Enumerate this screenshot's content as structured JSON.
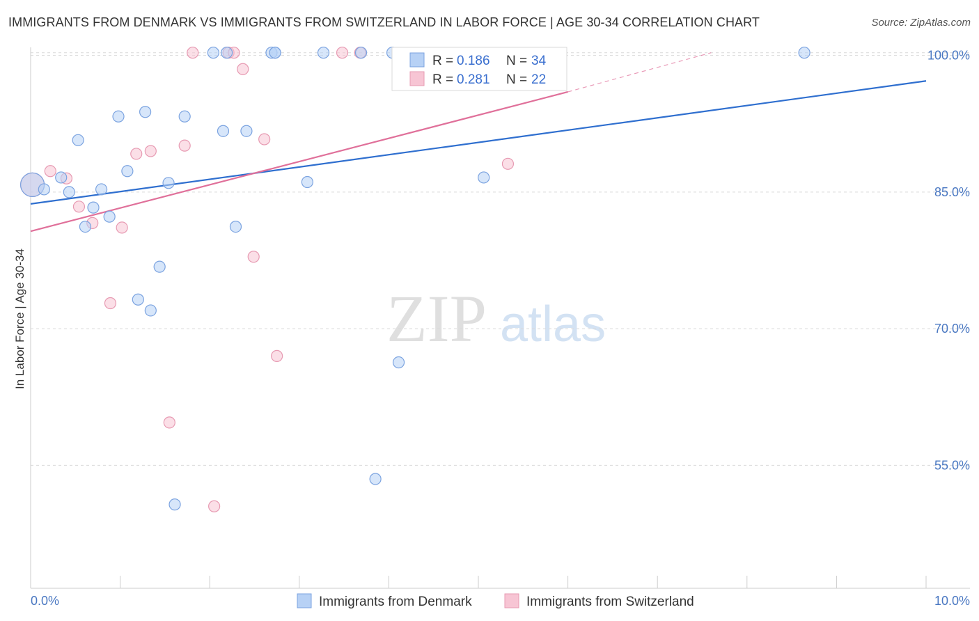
{
  "header": {
    "title": "IMMIGRANTS FROM DENMARK VS IMMIGRANTS FROM SWITZERLAND IN LABOR FORCE | AGE 30-34 CORRELATION CHART",
    "source": "Source: ZipAtlas.com"
  },
  "watermark": {
    "zip": "ZIP",
    "atlas": "atlas"
  },
  "colors": {
    "denmark_fill": "#b7d1f5",
    "denmark_stroke": "#7ba3e0",
    "denmark_line": "#2f6fcf",
    "switzerland_fill": "#f7c5d4",
    "switzerland_stroke": "#e79ab2",
    "switzerland_line": "#e0709a",
    "tick_text": "#4a78c2",
    "grid": "#d9d9d9"
  },
  "legend": {
    "rows": [
      {
        "r_label": "R = ",
        "r_value": "0.186",
        "n_label": "N = ",
        "n_value": "34"
      },
      {
        "r_label": "R = ",
        "r_value": "0.281",
        "n_label": "N = ",
        "n_value": "22"
      }
    ]
  },
  "chart_data": {
    "type": "scatter",
    "title": "IMMIGRANTS FROM DENMARK VS IMMIGRANTS FROM SWITZERLAND IN LABOR FORCE | AGE 30-34 CORRELATION CHART",
    "xlabel": "",
    "ylabel": "In Labor Force | Age 30-34",
    "xlim": [
      0,
      10
    ],
    "ylim": [
      41.5,
      101.5
    ],
    "x_tick_labels": [
      "0.0%",
      "10.0%"
    ],
    "y_ticks": [
      {
        "value": 55,
        "label": "55.0%"
      },
      {
        "value": 70,
        "label": "70.0%"
      },
      {
        "value": 85,
        "label": "85.0%"
      },
      {
        "value": 100,
        "label": "100.0%"
      }
    ],
    "legend_position": "bottom",
    "series": [
      {
        "name": "Immigrants from Denmark",
        "r": 0.186,
        "n": 34,
        "trend": {
          "x0": 0,
          "y0": 83.7,
          "x1": 10,
          "y1": 97.2
        },
        "points": [
          {
            "x": 0.02,
            "y": 85.8,
            "big": true
          },
          {
            "x": 0.15,
            "y": 85.3
          },
          {
            "x": 0.34,
            "y": 86.6
          },
          {
            "x": 0.43,
            "y": 85.0
          },
          {
            "x": 0.53,
            "y": 90.7
          },
          {
            "x": 0.61,
            "y": 81.2
          },
          {
            "x": 0.7,
            "y": 83.3
          },
          {
            "x": 0.79,
            "y": 85.3
          },
          {
            "x": 0.88,
            "y": 82.3
          },
          {
            "x": 0.98,
            "y": 93.3
          },
          {
            "x": 1.08,
            "y": 87.3
          },
          {
            "x": 1.2,
            "y": 73.2
          },
          {
            "x": 1.28,
            "y": 93.8
          },
          {
            "x": 1.34,
            "y": 72.0
          },
          {
            "x": 1.44,
            "y": 76.8
          },
          {
            "x": 1.54,
            "y": 86.0
          },
          {
            "x": 1.61,
            "y": 50.7
          },
          {
            "x": 1.72,
            "y": 93.3
          },
          {
            "x": 2.04,
            "y": 100.3
          },
          {
            "x": 2.15,
            "y": 91.7
          },
          {
            "x": 2.19,
            "y": 100.3
          },
          {
            "x": 2.29,
            "y": 81.2
          },
          {
            "x": 2.41,
            "y": 91.7
          },
          {
            "x": 2.69,
            "y": 100.3
          },
          {
            "x": 2.73,
            "y": 100.3
          },
          {
            "x": 3.09,
            "y": 86.1
          },
          {
            "x": 3.27,
            "y": 100.3
          },
          {
            "x": 3.69,
            "y": 100.3
          },
          {
            "x": 3.85,
            "y": 53.5
          },
          {
            "x": 4.04,
            "y": 100.3
          },
          {
            "x": 4.11,
            "y": 66.3
          },
          {
            "x": 5.06,
            "y": 86.6
          },
          {
            "x": 8.64,
            "y": 100.3
          },
          {
            "x": 2.73,
            "y": 100.3
          }
        ]
      },
      {
        "name": "Immigrants from Switzerland",
        "r": 0.281,
        "n": 22,
        "trend": {
          "x0": 0,
          "y0": 80.7,
          "x1": 6.0,
          "y1": 96.0,
          "dash_x1": 7.6,
          "dash_y1": 100.3
        },
        "points": [
          {
            "x": 0.02,
            "y": 85.8,
            "big": true
          },
          {
            "x": 0.22,
            "y": 87.3
          },
          {
            "x": 0.4,
            "y": 86.5
          },
          {
            "x": 0.54,
            "y": 83.4
          },
          {
            "x": 0.69,
            "y": 81.6
          },
          {
            "x": 0.89,
            "y": 72.8
          },
          {
            "x": 1.02,
            "y": 81.1
          },
          {
            "x": 1.18,
            "y": 89.2
          },
          {
            "x": 1.34,
            "y": 89.5
          },
          {
            "x": 1.55,
            "y": 59.7
          },
          {
            "x": 1.72,
            "y": 90.1
          },
          {
            "x": 1.81,
            "y": 100.3
          },
          {
            "x": 2.05,
            "y": 50.5
          },
          {
            "x": 2.21,
            "y": 100.3
          },
          {
            "x": 2.27,
            "y": 100.3
          },
          {
            "x": 2.37,
            "y": 98.5
          },
          {
            "x": 2.49,
            "y": 77.9
          },
          {
            "x": 2.61,
            "y": 90.8
          },
          {
            "x": 2.75,
            "y": 67.0
          },
          {
            "x": 3.48,
            "y": 100.3
          },
          {
            "x": 3.68,
            "y": 100.3
          },
          {
            "x": 5.33,
            "y": 88.1
          }
        ]
      }
    ]
  }
}
